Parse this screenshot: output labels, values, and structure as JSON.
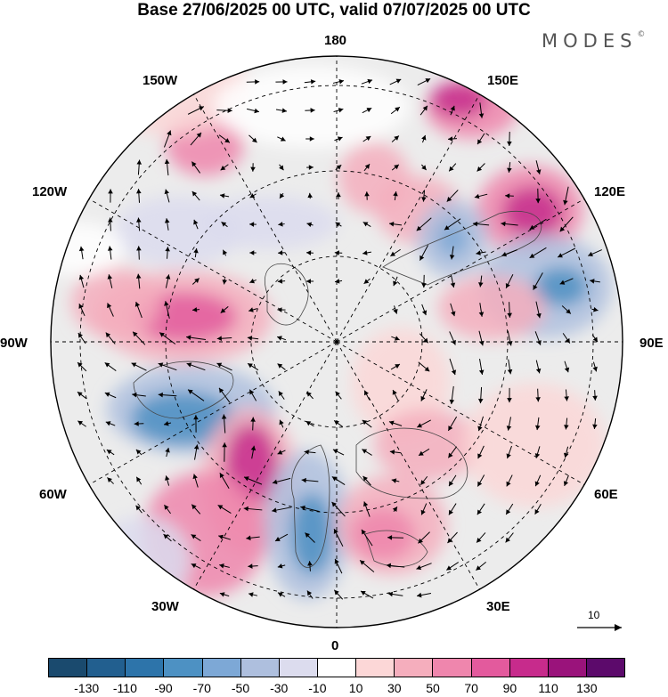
{
  "title": "Base 27/06/2025 00 UTC, valid 07/07/2025 00 UTC",
  "brand": {
    "name": "MODES",
    "mark": "©"
  },
  "longitude_labels": {
    "lon_180": "180",
    "lon_150e": "150E",
    "lon_120e": "120E",
    "lon_90e": "90E",
    "lon_60e": "60E",
    "lon_30e": "30E",
    "lon_0": "0",
    "lon_30w": "30W",
    "lon_60w": "60W",
    "lon_90w": "90W",
    "lon_120w": "120W",
    "lon_150w": "150W"
  },
  "reference_vector": {
    "label": "10"
  },
  "colorbar": {
    "colors": [
      "#1a4a6e",
      "#225f8f",
      "#2d74aa",
      "#4d91c3",
      "#7da8d6",
      "#aebfde",
      "#dcdcee",
      "#ffffff",
      "#fcd7d7",
      "#f5aebd",
      "#ef86ad",
      "#e35a9d",
      "#c72b8c",
      "#9a137b",
      "#5c0a6b"
    ],
    "tick_labels": [
      "-130",
      "-110",
      "-90",
      "-70",
      "-50",
      "-30",
      "-10",
      "10",
      "30",
      "50",
      "70",
      "90",
      "110",
      "130"
    ]
  },
  "map": {
    "projection": "north-polar-stereographic",
    "field": "anomaly",
    "colors": {
      "background": "#ececec",
      "outline": "#000000",
      "graticule": "#000000",
      "coast": "#444444",
      "arrow": "#000000"
    }
  }
}
